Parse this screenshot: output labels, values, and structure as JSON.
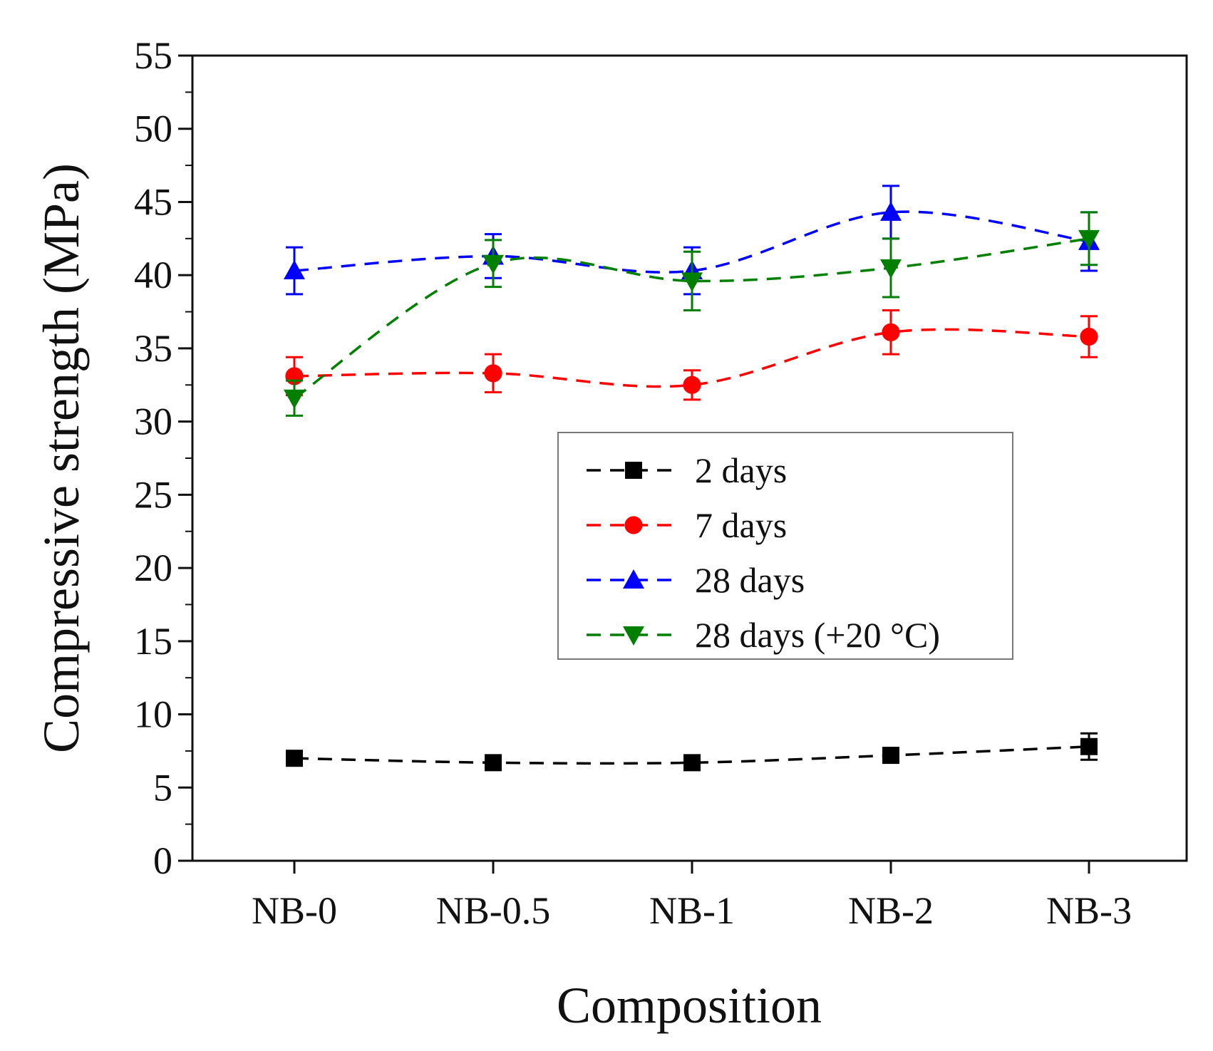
{
  "chart_data": {
    "type": "line",
    "title": "",
    "xlabel": "Composition",
    "ylabel": "Compressive strength (MPa)",
    "categories": [
      "NB-0",
      "NB-0.5",
      "NB-1",
      "NB-2",
      "NB-3"
    ],
    "ylim": [
      0,
      55
    ],
    "yticks": [
      0,
      5,
      10,
      15,
      20,
      25,
      30,
      35,
      40,
      45,
      50,
      55
    ],
    "grid": false,
    "legend_position": "center-right",
    "series": [
      {
        "name": "2 days",
        "color": "#000000",
        "marker": "square",
        "values": [
          7.0,
          6.7,
          6.7,
          7.2,
          7.8
        ],
        "errors": [
          0.4,
          0.4,
          0.5,
          0.5,
          0.9
        ]
      },
      {
        "name": "7 days",
        "color": "#ff0000",
        "marker": "circle",
        "values": [
          33.1,
          33.3,
          32.5,
          36.1,
          35.8
        ],
        "errors": [
          1.3,
          1.3,
          1.0,
          1.5,
          1.4
        ]
      },
      {
        "name": "28 days",
        "color": "#0000ff",
        "marker": "triangle-up",
        "values": [
          40.3,
          41.3,
          40.3,
          44.3,
          42.3
        ],
        "errors": [
          1.6,
          1.5,
          1.6,
          1.8,
          2.0
        ]
      },
      {
        "name": "28 days (+20 °C)",
        "color": "#007f00",
        "marker": "triangle-down",
        "values": [
          31.6,
          40.8,
          39.6,
          40.5,
          42.5
        ],
        "errors": [
          1.2,
          1.6,
          2.0,
          2.0,
          1.8
        ]
      }
    ]
  }
}
